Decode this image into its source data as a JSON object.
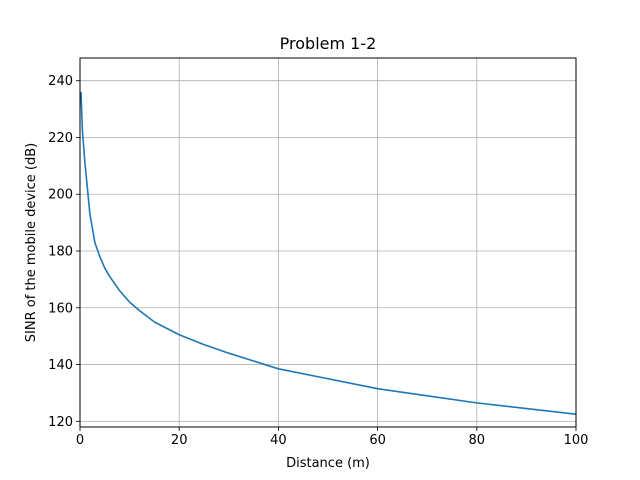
{
  "chart_data": {
    "type": "line",
    "title": "Problem 1-2",
    "xlabel": "Distance (m)",
    "ylabel": "SINR of the mobile device (dB)",
    "xlim": [
      0,
      100
    ],
    "ylim": [
      118,
      248
    ],
    "xticks": [
      0,
      20,
      40,
      60,
      80,
      100
    ],
    "yticks": [
      120,
      140,
      160,
      180,
      200,
      220,
      240
    ],
    "xtick_labels": [
      "0",
      "20",
      "40",
      "60",
      "80",
      "100"
    ],
    "ytick_labels": [
      "120",
      "140",
      "160",
      "180",
      "200",
      "220",
      "240"
    ],
    "grid": true,
    "series": [
      {
        "color": "#1f77b4",
        "x": [
          0.2,
          0.5,
          1,
          2,
          3,
          4,
          5,
          6,
          8,
          10,
          12,
          15,
          20,
          25,
          30,
          40,
          50,
          60,
          70,
          80,
          90,
          100
        ],
        "values": [
          236,
          222,
          211,
          193,
          183,
          178,
          174,
          171,
          166,
          162,
          159,
          155,
          150.5,
          147,
          144,
          138.5,
          135,
          131.5,
          129,
          126.5,
          124.5,
          122.5
        ]
      }
    ]
  }
}
